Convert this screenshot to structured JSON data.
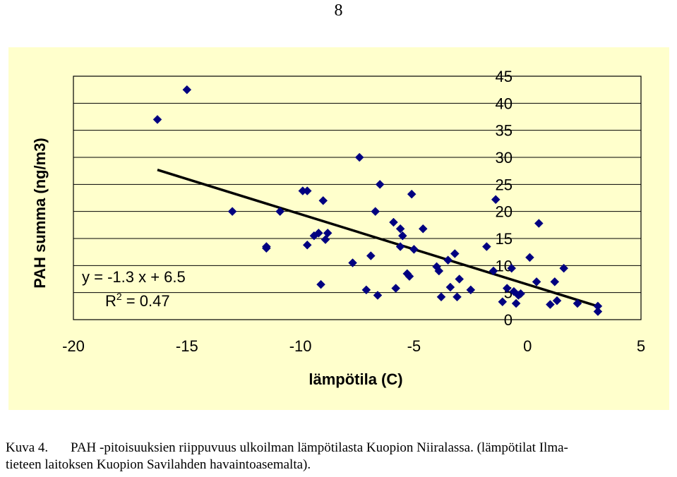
{
  "page": {
    "number": "8"
  },
  "caption": {
    "label": "Kuva 4.",
    "text_line1": "PAH -pitoisuuksien riippuvuus ulkoilman lämpötilasta Kuopion Niiralassa. (lämpötilat Ilma-",
    "text_line2": "tieteen laitoksen Kuopion Savilahden havaintoasemalta)."
  },
  "chart_data": {
    "type": "scatter",
    "title": "",
    "xlabel": "lämpötila (C)",
    "ylabel": "PAH summa (ng/m3)",
    "xlim": [
      -20,
      5
    ],
    "ylim": [
      0,
      45
    ],
    "xticks": [
      "-20",
      "-15",
      "-10",
      "-5",
      "0",
      "5"
    ],
    "yticks": [
      "0",
      "5",
      "10",
      "15",
      "20",
      "25",
      "30",
      "35",
      "40",
      "45"
    ],
    "grid": "horizontal",
    "legend": "none",
    "marker_color": "#000080",
    "trendline": {
      "equation": "y = -1.3 x + 6.5",
      "r2_prefix": "R",
      "r2_sup": "2",
      "r2_value": " = 0.47",
      "slope": -1.3,
      "intercept": 6.5,
      "x_range": [
        -16.3,
        3.1
      ],
      "color": "#000000"
    },
    "points": [
      {
        "x": -15.0,
        "y": 42.5
      },
      {
        "x": -16.3,
        "y": 37.0
      },
      {
        "x": -13.0,
        "y": 20.0
      },
      {
        "x": -11.5,
        "y": 13.5
      },
      {
        "x": -11.5,
        "y": 13.2
      },
      {
        "x": -10.9,
        "y": 20.0
      },
      {
        "x": -9.9,
        "y": 23.8
      },
      {
        "x": -9.7,
        "y": 23.8
      },
      {
        "x": -9.7,
        "y": 13.8
      },
      {
        "x": -9.4,
        "y": 15.5
      },
      {
        "x": -9.2,
        "y": 16.0
      },
      {
        "x": -9.0,
        "y": 22.0
      },
      {
        "x": -8.9,
        "y": 14.8
      },
      {
        "x": -8.8,
        "y": 16.0
      },
      {
        "x": -9.1,
        "y": 6.5
      },
      {
        "x": -7.7,
        "y": 10.5
      },
      {
        "x": -7.4,
        "y": 30.0
      },
      {
        "x": -7.1,
        "y": 5.5
      },
      {
        "x": -6.9,
        "y": 11.8
      },
      {
        "x": -6.7,
        "y": 20.0
      },
      {
        "x": -6.6,
        "y": 4.5
      },
      {
        "x": -6.5,
        "y": 25.0
      },
      {
        "x": -5.9,
        "y": 18.0
      },
      {
        "x": -5.8,
        "y": 5.8
      },
      {
        "x": -5.6,
        "y": 16.8
      },
      {
        "x": -5.5,
        "y": 15.5
      },
      {
        "x": -5.6,
        "y": 13.5
      },
      {
        "x": -5.3,
        "y": 8.5
      },
      {
        "x": -5.2,
        "y": 8.0
      },
      {
        "x": -5.1,
        "y": 23.2
      },
      {
        "x": -5.0,
        "y": 13.0
      },
      {
        "x": -4.6,
        "y": 16.8
      },
      {
        "x": -4.0,
        "y": 9.8
      },
      {
        "x": -3.9,
        "y": 9.0
      },
      {
        "x": -3.8,
        "y": 4.2
      },
      {
        "x": -3.4,
        "y": 6.0
      },
      {
        "x": -3.5,
        "y": 11.0
      },
      {
        "x": -3.2,
        "y": 12.2
      },
      {
        "x": -3.1,
        "y": 4.2
      },
      {
        "x": -3.0,
        "y": 7.5
      },
      {
        "x": -2.5,
        "y": 5.5
      },
      {
        "x": -1.8,
        "y": 13.5
      },
      {
        "x": -1.4,
        "y": 22.2
      },
      {
        "x": -1.5,
        "y": 9.0
      },
      {
        "x": -1.1,
        "y": 3.3
      },
      {
        "x": -0.9,
        "y": 5.8
      },
      {
        "x": -0.7,
        "y": 9.5
      },
      {
        "x": -0.6,
        "y": 5.2
      },
      {
        "x": -0.5,
        "y": 3.0
      },
      {
        "x": -0.4,
        "y": 4.5
      },
      {
        "x": -0.3,
        "y": 4.8
      },
      {
        "x": 0.1,
        "y": 11.5
      },
      {
        "x": 0.4,
        "y": 7.0
      },
      {
        "x": 0.5,
        "y": 17.8
      },
      {
        "x": 1.0,
        "y": 2.8
      },
      {
        "x": 1.2,
        "y": 7.0
      },
      {
        "x": 1.3,
        "y": 3.5
      },
      {
        "x": 1.6,
        "y": 9.5
      },
      {
        "x": 2.2,
        "y": 3.0
      },
      {
        "x": 3.1,
        "y": 2.5
      },
      {
        "x": 3.1,
        "y": 1.5
      }
    ]
  }
}
